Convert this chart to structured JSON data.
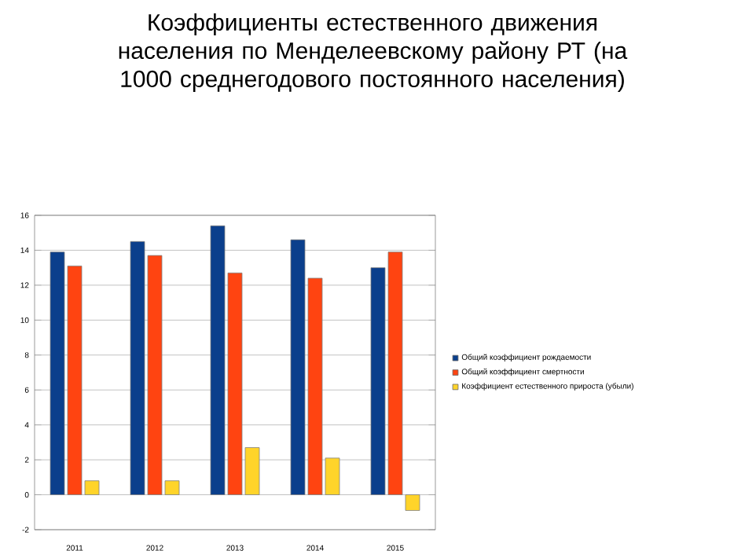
{
  "chart_data": {
    "type": "bar",
    "title": "Коэффициенты естественного движения населения по Менделеевскому району РТ (на 1000 среднегодового постоянного населения)",
    "categories": [
      "2011",
      "2012",
      "2013",
      "2014",
      "2015"
    ],
    "series": [
      {
        "name": "Общий коэффициент рождаемости",
        "color": "#0b3f8c",
        "values": [
          13.9,
          14.5,
          15.4,
          14.6,
          13.0
        ]
      },
      {
        "name": "Общий коэффициент смертности",
        "color": "#ff4411",
        "values": [
          13.1,
          13.7,
          12.7,
          12.4,
          13.9
        ]
      },
      {
        "name": "Коэффициент естественного прироста (убыли)",
        "color": "#ffd42a",
        "values": [
          0.8,
          0.8,
          2.7,
          2.1,
          -0.9
        ]
      }
    ],
    "ylim": [
      -2,
      16
    ],
    "yticks": [
      -2,
      0,
      2,
      4,
      6,
      8,
      10,
      12,
      14,
      16
    ],
    "grid": "y",
    "legend": "right"
  }
}
